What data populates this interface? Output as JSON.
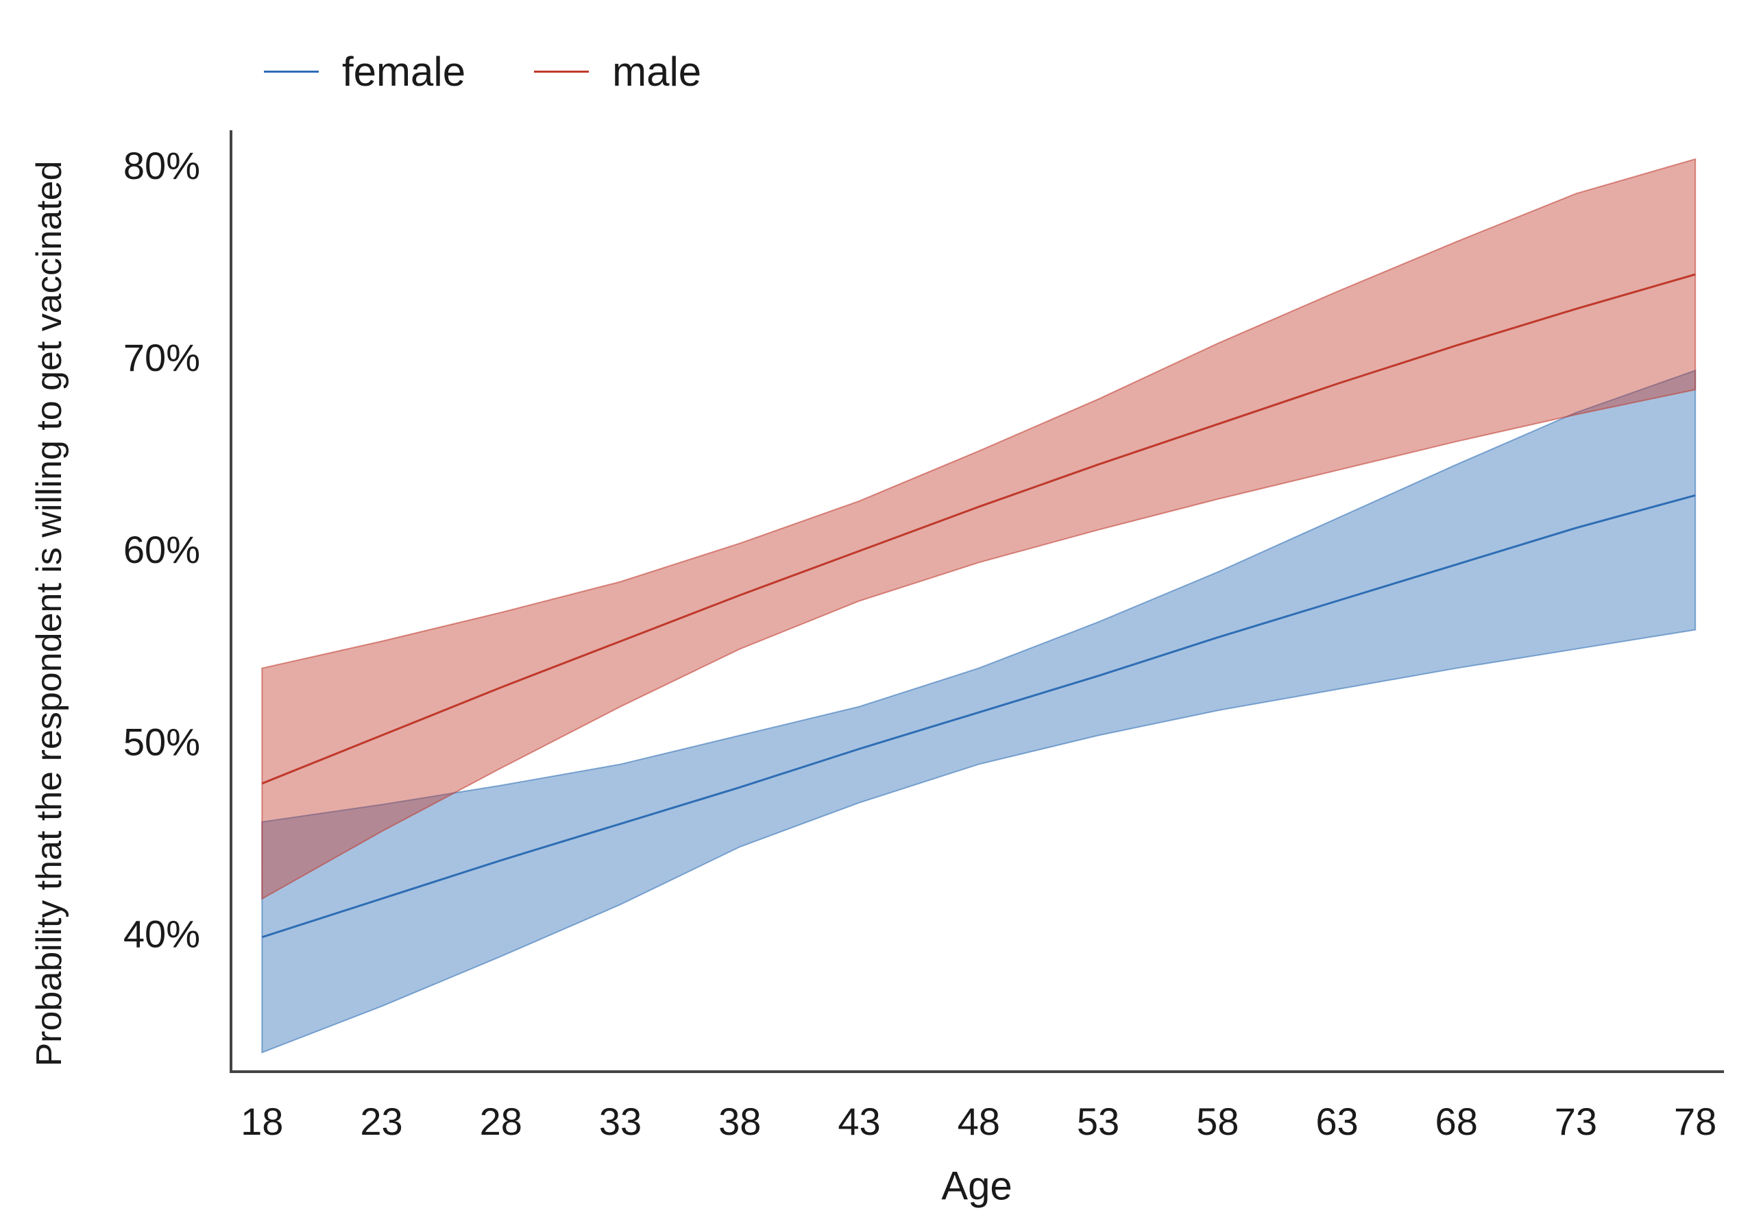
{
  "chart_data": {
    "type": "line",
    "xlabel": "Age",
    "ylabel": "Probability that the respondent is willing to get vaccinated",
    "x": [
      18,
      23,
      28,
      33,
      38,
      43,
      48,
      53,
      58,
      63,
      68,
      73,
      78
    ],
    "xlim": [
      16.7,
      79.2
    ],
    "ylim": [
      33,
      82
    ],
    "yticks": [
      40,
      50,
      60,
      70,
      80
    ],
    "ytick_labels": [
      "40%",
      "50%",
      "60%",
      "70%",
      "80%"
    ],
    "legend_position": "top-left",
    "grid": false,
    "series": [
      {
        "name": "female",
        "color": "#2e6db5",
        "fill": "#a6c0de",
        "values": [
          40.0,
          42.0,
          44.0,
          45.9,
          47.8,
          49.8,
          51.7,
          53.6,
          55.6,
          57.5,
          59.4,
          61.3,
          63.0
        ],
        "lower": [
          34.0,
          36.4,
          39.0,
          41.7,
          44.7,
          47.0,
          49.0,
          50.5,
          51.8,
          52.9,
          54.0,
          55.0,
          56.0
        ],
        "upper": [
          46.0,
          46.9,
          47.9,
          49.0,
          50.5,
          52.0,
          54.0,
          56.4,
          59.0,
          61.8,
          64.6,
          67.3,
          69.5
        ]
      },
      {
        "name": "male",
        "color": "#c0392b",
        "fill": "#e0a0a8",
        "values": [
          48.0,
          50.5,
          53.0,
          55.4,
          57.8,
          60.1,
          62.4,
          64.6,
          66.7,
          68.8,
          70.8,
          72.7,
          74.5
        ],
        "lower": [
          42.0,
          45.5,
          48.8,
          52.0,
          55.0,
          57.5,
          59.5,
          61.2,
          62.8,
          64.3,
          65.8,
          67.2,
          68.5
        ],
        "upper": [
          54.0,
          55.4,
          56.9,
          58.5,
          60.5,
          62.7,
          65.3,
          68.0,
          70.9,
          73.6,
          76.2,
          78.7,
          80.5
        ]
      }
    ]
  }
}
